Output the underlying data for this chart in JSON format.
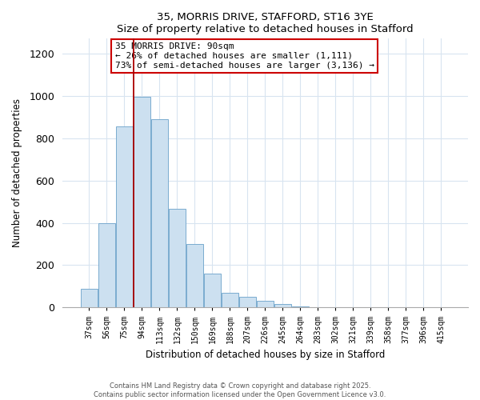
{
  "title_line1": "35, MORRIS DRIVE, STAFFORD, ST16 3YE",
  "title_line2": "Size of property relative to detached houses in Stafford",
  "xlabel": "Distribution of detached houses by size in Stafford",
  "ylabel": "Number of detached properties",
  "bar_labels": [
    "37sqm",
    "56sqm",
    "75sqm",
    "94sqm",
    "113sqm",
    "132sqm",
    "150sqm",
    "169sqm",
    "188sqm",
    "207sqm",
    "226sqm",
    "245sqm",
    "264sqm",
    "283sqm",
    "302sqm",
    "321sqm",
    "339sqm",
    "358sqm",
    "377sqm",
    "396sqm",
    "415sqm"
  ],
  "bar_values": [
    90,
    400,
    855,
    995,
    890,
    465,
    300,
    160,
    70,
    50,
    32,
    18,
    4,
    0,
    0,
    0,
    0,
    0,
    0,
    0,
    0
  ],
  "bar_color": "#cce0f0",
  "bar_edge_color": "#7aabcf",
  "vline_index": 3,
  "annotation_title": "35 MORRIS DRIVE: 90sqm",
  "annotation_line2": "← 26% of detached houses are smaller (1,111)",
  "annotation_line3": "73% of semi-detached houses are larger (3,136) →",
  "annotation_box_color": "#ffffff",
  "annotation_box_edge": "#cc0000",
  "vline_color": "#aa0000",
  "ylim": [
    0,
    1270
  ],
  "yticks": [
    0,
    200,
    400,
    600,
    800,
    1000,
    1200
  ],
  "footer_line1": "Contains HM Land Registry data © Crown copyright and database right 2025.",
  "footer_line2": "Contains public sector information licensed under the Open Government Licence v3.0.",
  "bg_color": "#ffffff",
  "grid_color": "#d8e4f0"
}
